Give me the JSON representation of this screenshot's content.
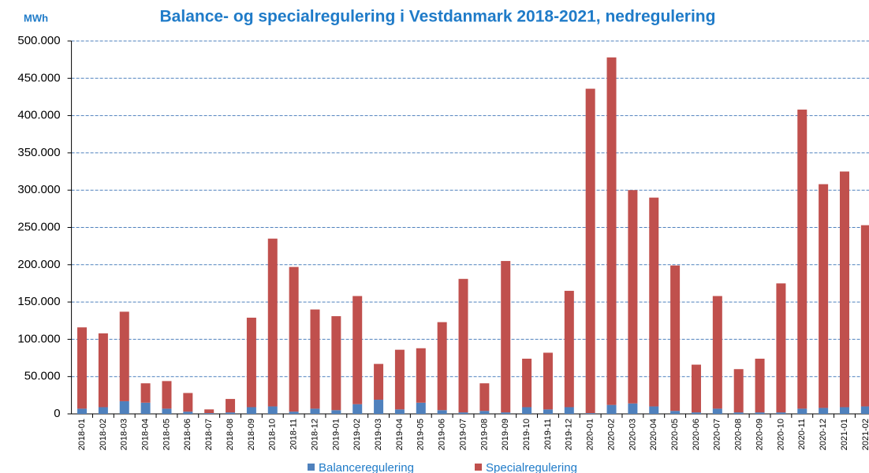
{
  "chart_data": {
    "type": "stacked_bar",
    "title": "Balance- og specialregulering i Vestdanmark 2018-2021, nedregulering",
    "y_label": "MWh",
    "categories": [
      "2018-01",
      "2018-02",
      "2018-03",
      "2018-04",
      "2018-05",
      "2018-06",
      "2018-07",
      "2018-08",
      "2018-09",
      "2018-10",
      "2018-11",
      "2018-12",
      "2019-01",
      "2019-02",
      "2019-03",
      "2019-04",
      "2019-05",
      "2019-06",
      "2019-07",
      "2019-08",
      "2019-09",
      "2019-10",
      "2019-11",
      "2019-12",
      "2020-01",
      "2020-02",
      "2020-03",
      "2020-04",
      "2020-05",
      "2020-06",
      "2020-07",
      "2020-08",
      "2020-09",
      "2020-10",
      "2020-11",
      "2020-12",
      "2021-01",
      "2021-02"
    ],
    "series": [
      {
        "name": "Balanceregulering",
        "color": "#4f81bd",
        "values": [
          7000,
          9000,
          17000,
          15000,
          7000,
          3000,
          1000,
          2000,
          9000,
          10000,
          3000,
          7000,
          5000,
          13000,
          19000,
          6000,
          15000,
          5000,
          2000,
          4000,
          2000,
          9000,
          6000,
          9000,
          1000,
          12000,
          14000,
          10000,
          4000,
          2000,
          7000,
          2000,
          2000,
          2000,
          7000,
          8000,
          9000,
          10000
        ]
      },
      {
        "name": "Specialregulering",
        "color": "#c0504d",
        "values": [
          109000,
          99000,
          120000,
          26000,
          37000,
          25000,
          5000,
          18000,
          120000,
          225000,
          194000,
          133000,
          126000,
          145000,
          48000,
          80000,
          73000,
          118000,
          179000,
          37000,
          203000,
          65000,
          76000,
          156000,
          435000,
          466000,
          286000,
          280000,
          195000,
          64000,
          151000,
          58000,
          72000,
          173000,
          401000,
          300000,
          316000,
          243000
        ]
      }
    ],
    "ylim": [
      0,
      500000
    ],
    "yticks": [
      0,
      {
        "value": 50000,
        "label": "50.000"
      },
      {
        "value": 100000,
        "label": "100.000"
      },
      {
        "value": 150000,
        "label": "150.000"
      },
      {
        "value": 200000,
        "label": "200.000"
      },
      {
        "value": 250000,
        "label": "250.000"
      },
      {
        "value": 300000,
        "label": "300.000"
      },
      {
        "value": 350000,
        "label": "350.000"
      },
      {
        "value": 400000,
        "label": "400.000"
      },
      {
        "value": 450000,
        "label": "450.000"
      },
      {
        "value": 500000,
        "label": "500.000"
      }
    ],
    "grid": true,
    "legend": "bottom"
  }
}
